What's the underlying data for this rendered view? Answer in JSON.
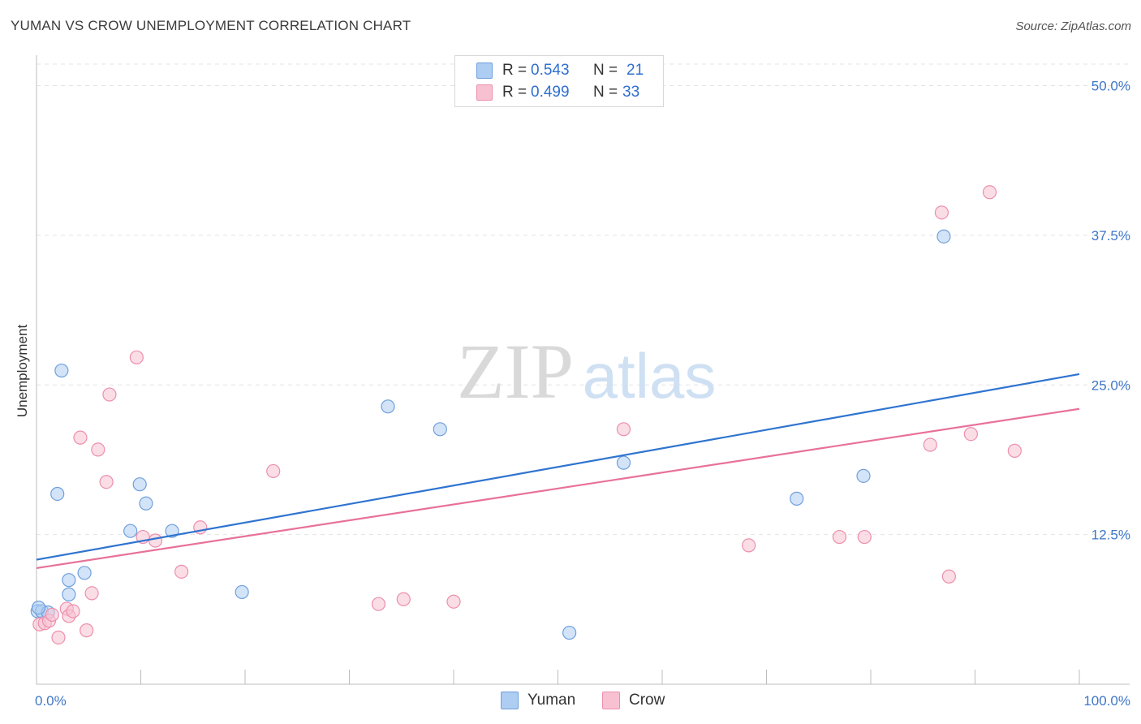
{
  "header": {
    "title": "YUMAN VS CROW UNEMPLOYMENT CORRELATION CHART",
    "source": "Source: ZipAtlas.com"
  },
  "watermark": {
    "zip": "ZIP",
    "atlas": "atlas"
  },
  "legend": {
    "yuman": {
      "r_label": "R =",
      "r_value": "0.543",
      "n_label": "N =",
      "n_value": "21"
    },
    "crow": {
      "r_label": "R =",
      "r_value": "0.499",
      "n_label": "N =",
      "n_value": "33"
    }
  },
  "colors": {
    "yuman_fill": "#aecdf2",
    "yuman_stroke": "#6f9fdc",
    "yuman_line": "#2f74d0",
    "crow_fill": "#f8c1d2",
    "crow_stroke": "#ec8fac",
    "crow_line": "#e8719a",
    "axis_text": "#3f77c8",
    "grid": "#e3e3e3"
  },
  "chart_data": {
    "type": "scatter",
    "title": "YUMAN VS CROW UNEMPLOYMENT CORRELATION CHART",
    "xlabel": "",
    "ylabel": "Unemployment",
    "xlim": [
      0,
      100
    ],
    "ylim": [
      0,
      52
    ],
    "x_tick_labels": [
      "0.0%",
      "100.0%"
    ],
    "y_ticks": [
      12.5,
      25.0,
      37.5,
      50.0
    ],
    "y_tick_labels": [
      "12.5%",
      "25.0%",
      "37.5%",
      "50.0%"
    ],
    "grid": true,
    "legend_position": "bottom-center",
    "series": [
      {
        "name": "Yuman",
        "points": [
          [
            0.1,
            6.1
          ],
          [
            0.5,
            6.1
          ],
          [
            1.1,
            6.0
          ],
          [
            2.0,
            15.9
          ],
          [
            2.4,
            26.2
          ],
          [
            3.1,
            8.7
          ],
          [
            3.1,
            7.5
          ],
          [
            4.6,
            9.3
          ],
          [
            9.0,
            12.8
          ],
          [
            9.9,
            16.7
          ],
          [
            10.5,
            15.1
          ],
          [
            13.0,
            12.8
          ],
          [
            19.7,
            7.7
          ],
          [
            33.7,
            23.2
          ],
          [
            38.7,
            21.3
          ],
          [
            51.1,
            4.3
          ],
          [
            56.3,
            18.5
          ],
          [
            72.9,
            15.5
          ],
          [
            79.3,
            17.4
          ],
          [
            87.0,
            37.4
          ],
          [
            0.2,
            6.4
          ]
        ],
        "trend": {
          "x": [
            0,
            100
          ],
          "y": [
            10.4,
            25.9
          ]
        }
      },
      {
        "name": "Crow",
        "points": [
          [
            0.3,
            5.0
          ],
          [
            0.8,
            5.1
          ],
          [
            1.2,
            5.3
          ],
          [
            1.5,
            5.8
          ],
          [
            2.1,
            3.9
          ],
          [
            2.9,
            6.3
          ],
          [
            3.1,
            5.7
          ],
          [
            3.5,
            6.1
          ],
          [
            4.2,
            20.6
          ],
          [
            4.8,
            4.5
          ],
          [
            5.3,
            7.6
          ],
          [
            5.9,
            19.6
          ],
          [
            6.7,
            16.9
          ],
          [
            7.0,
            24.2
          ],
          [
            9.6,
            27.3
          ],
          [
            10.2,
            12.3
          ],
          [
            11.4,
            12.0
          ],
          [
            13.9,
            9.4
          ],
          [
            15.7,
            13.1
          ],
          [
            22.7,
            17.8
          ],
          [
            32.8,
            6.7
          ],
          [
            35.2,
            7.1
          ],
          [
            40.0,
            6.9
          ],
          [
            56.3,
            21.3
          ],
          [
            68.3,
            11.6
          ],
          [
            77.0,
            12.3
          ],
          [
            79.4,
            12.3
          ],
          [
            85.7,
            20.0
          ],
          [
            86.8,
            39.4
          ],
          [
            87.5,
            9.0
          ],
          [
            89.6,
            20.9
          ],
          [
            91.4,
            41.1
          ],
          [
            93.8,
            19.5
          ]
        ],
        "trend": {
          "x": [
            0,
            100
          ],
          "y": [
            9.7,
            23.0
          ]
        }
      }
    ]
  }
}
